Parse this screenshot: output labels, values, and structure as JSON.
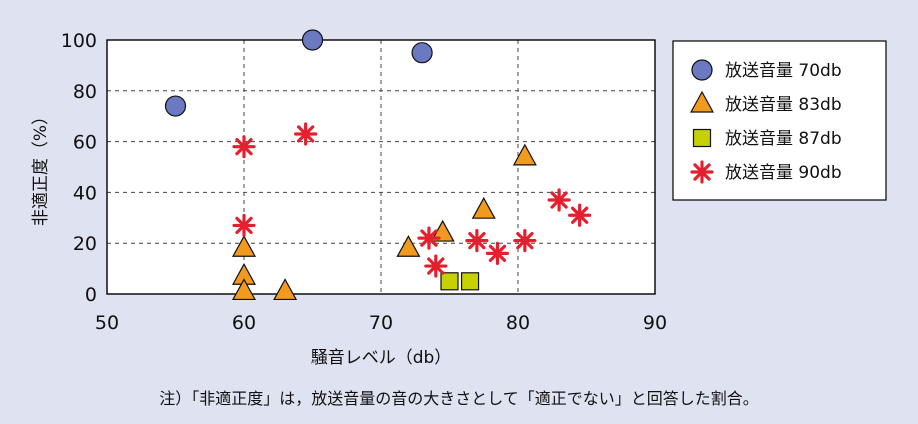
{
  "chart_data": {
    "type": "scatter",
    "xlabel": "騒音レベル（db）",
    "ylabel": "非適正度（%）",
    "xlim": [
      50,
      90
    ],
    "ylim": [
      0,
      100
    ],
    "x_ticks": [
      "50",
      "60",
      "70",
      "80",
      "90"
    ],
    "y_ticks": [
      "0",
      "20",
      "40",
      "60",
      "80",
      "100"
    ],
    "grid": "dashed",
    "legend_position": "right",
    "series": [
      {
        "name": "放送音量 70db",
        "marker": "circle",
        "color": "#6a79c0",
        "points": [
          [
            55,
            74
          ],
          [
            65,
            100
          ],
          [
            73,
            95
          ]
        ]
      },
      {
        "name": "放送音量 83db",
        "marker": "triangle",
        "color": "#f29a1e",
        "points": [
          [
            60,
            18
          ],
          [
            60,
            7
          ],
          [
            60,
            1
          ],
          [
            63,
            1
          ],
          [
            72,
            18
          ],
          [
            74.5,
            24
          ],
          [
            77.5,
            33
          ],
          [
            80.5,
            54
          ]
        ]
      },
      {
        "name": "放送音量 87db",
        "marker": "square",
        "color": "#c5d200",
        "points": [
          [
            75,
            5
          ],
          [
            76.5,
            5
          ]
        ]
      },
      {
        "name": "放送音量 90db",
        "marker": "asterisk",
        "color": "#e4202e",
        "points": [
          [
            60,
            58
          ],
          [
            60,
            27
          ],
          [
            64.5,
            63
          ],
          [
            73.5,
            22
          ],
          [
            74,
            11
          ],
          [
            77,
            21
          ],
          [
            78.5,
            16
          ],
          [
            80.5,
            21
          ],
          [
            83,
            37
          ],
          [
            84.5,
            31
          ]
        ]
      }
    ]
  },
  "note": "注）「非適正度」は，放送音量の音の大きさとして「適正でない」と回答した割合。"
}
